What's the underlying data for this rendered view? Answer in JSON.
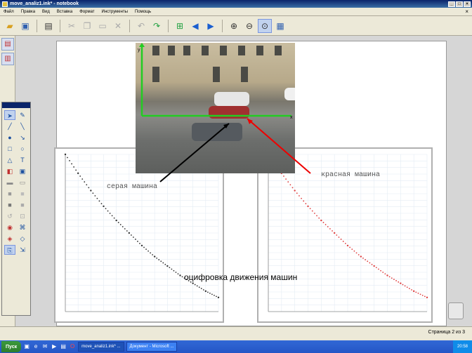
{
  "window": {
    "title": "move_analiz1.ink* - notebook",
    "controls": [
      "_",
      "□",
      "×"
    ]
  },
  "menu": {
    "items": [
      "Файл",
      "Правка",
      "Вид",
      "Вставка",
      "Формат",
      "Инструменты",
      "Помощь"
    ]
  },
  "toolbar": {
    "icons": [
      "open-icon",
      "save-icon",
      "print-icon",
      "cut-icon",
      "copy-icon",
      "paste-icon",
      "delete-icon",
      "undo-icon",
      "redo-icon",
      "add-page-icon",
      "back-icon",
      "forward-icon",
      "zoom-in-icon",
      "zoom-out-icon",
      "zoom-fit-icon",
      "screen-icon"
    ]
  },
  "annotations": {
    "gray_car": "серая машина",
    "red_car": "красная машина",
    "caption": "оцифровка движения машин"
  },
  "statusbar": {
    "page_info": "Страница 2 из 3"
  },
  "taskbar": {
    "start_label": "Пуск",
    "tasks": [
      "move_analiz1.ink* ...",
      "Документ - Microsoft ..."
    ],
    "clock": "20:58"
  },
  "colors": {
    "accent_blue": "#0a246a",
    "gray_series": "#333333",
    "red_series": "#e04040",
    "axis_green": "#22cc22"
  },
  "chart_data": [
    {
      "type": "scatter",
      "title": "",
      "series": [
        {
          "x": [
            0,
            0.5,
            1,
            1.5,
            2,
            2.5,
            3,
            3.5,
            4,
            4.5,
            5,
            5.5,
            6
          ],
          "y": [
            100,
            88,
            77,
            67,
            58,
            50,
            42,
            35,
            29,
            23,
            18,
            13,
            9
          ]
        }
      ],
      "xlim": [
        0,
        6
      ],
      "ylim": [
        0,
        100
      ],
      "grid": true
    },
    {
      "type": "scatter",
      "title": "",
      "series": [
        {
          "x": [
            0,
            0.5,
            1,
            1.5,
            2,
            2.5,
            3,
            3.5,
            4,
            4.5,
            5,
            5.5,
            6
          ],
          "y": [
            100,
            88,
            77,
            67,
            58,
            50,
            42,
            35,
            29,
            23,
            18,
            13,
            9
          ]
        }
      ],
      "xlim": [
        0,
        6
      ],
      "ylim": [
        0,
        100
      ],
      "grid": true
    }
  ]
}
